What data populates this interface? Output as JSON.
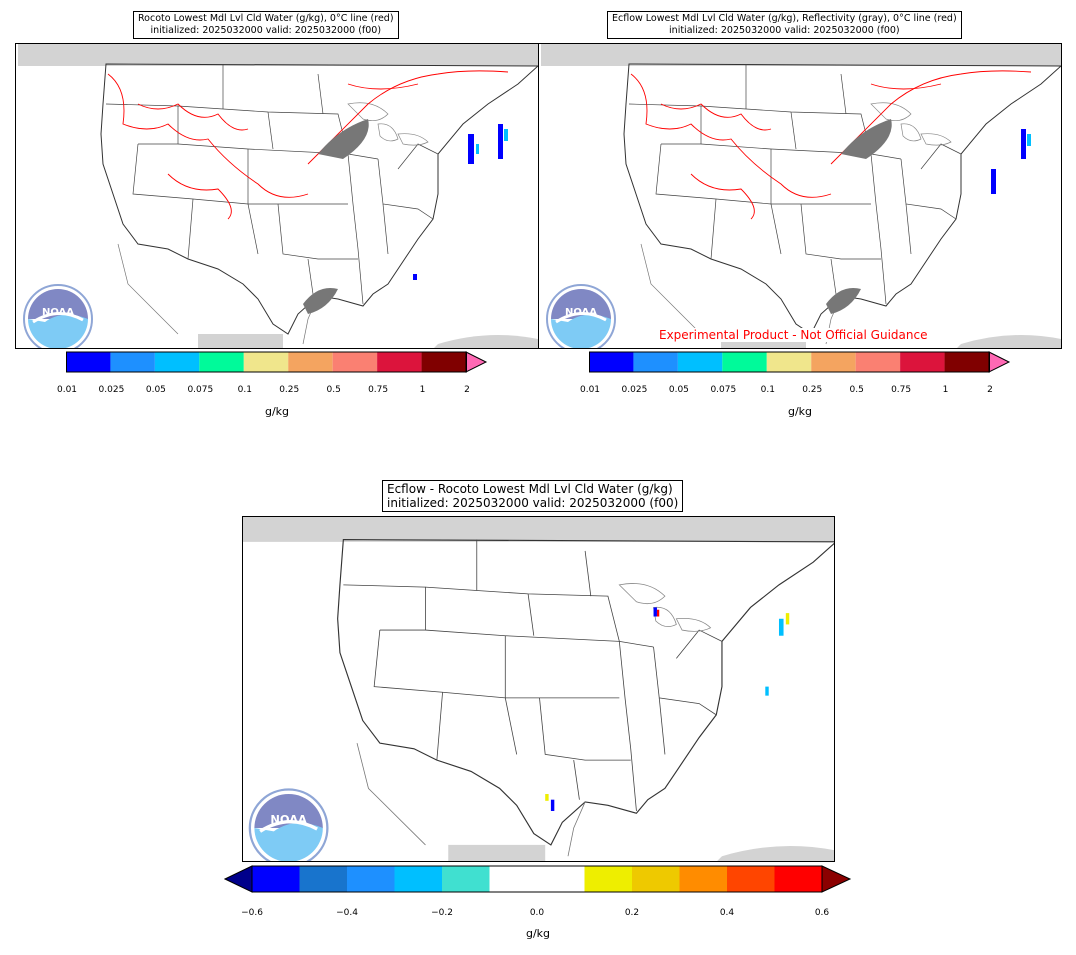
{
  "panels": [
    {
      "title_line1": "Rocoto Lowest Mdl Lvl Cld Water (g/kg), 0°C line (red)",
      "title_line2": "initialized: 2025032000 valid: 2025032000 (f00)"
    },
    {
      "title_line1": "Ecflow Lowest Mdl Lvl Cld Water (g/kg), Reflectivity (gray), 0°C line (red)",
      "title_line2": "initialized: 2025032000 valid: 2025032000 (f00)",
      "overlay_text": "Experimental Product - Not Official Guidance"
    },
    {
      "title_line1": "Ecflow - Rocoto Lowest Mdl Lvl Cld Water (g/kg)",
      "title_line2": "initialized: 2025032000 valid: 2025032000 (f00)"
    }
  ],
  "colorbar_top": {
    "ticks": [
      "0.01",
      "0.025",
      "0.05",
      "0.075",
      "0.1",
      "0.25",
      "0.5",
      "0.75",
      "1",
      "2"
    ],
    "colors": [
      "#0000ff",
      "#1e90ff",
      "#00bfff",
      "#00fa9a",
      "#f0e68c",
      "#f4a460",
      "#fa8072",
      "#dc143c",
      "#800000"
    ],
    "extend_color": "#ff69b4",
    "label": "g/kg"
  },
  "colorbar_bottom": {
    "ticks": [
      "−0.6",
      "−0.4",
      "−0.2",
      "0.0",
      "0.2",
      "0.4",
      "0.6"
    ],
    "colors": [
      "#0000ff",
      "#1874cd",
      "#1e90ff",
      "#00bfff",
      "#40e0d0",
      "#ffffff",
      "#ffffff",
      "#eeee00",
      "#eec900",
      "#ff8c00",
      "#ff4500",
      "#ff0000"
    ],
    "extend_low": "#00008b",
    "extend_high": "#8b0000",
    "label": "g/kg"
  }
}
